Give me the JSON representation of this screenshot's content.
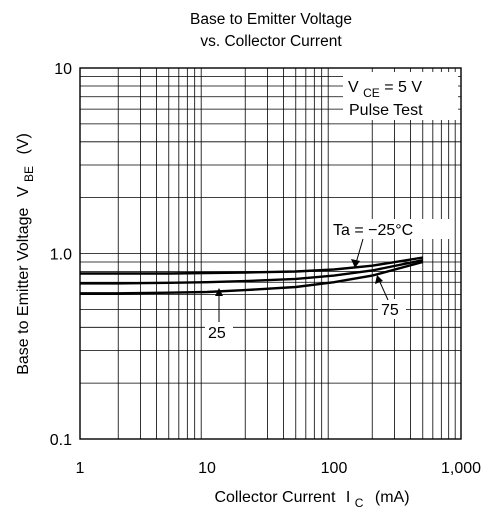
{
  "chart_data": {
    "type": "line",
    "title_line1": "Base to Emitter Voltage",
    "title_line2": "vs. Collector Current",
    "xlabel": "Collector Current",
    "xlabel_symbol": "I",
    "xlabel_sub": "C",
    "xlabel_unit": "(mA)",
    "ylabel": "Base to Emitter Voltage",
    "ylabel_symbol": "V",
    "ylabel_sub": "BE",
    "ylabel_unit": "(V)",
    "x_scale": "log",
    "y_scale": "log",
    "xlim": [
      1,
      1000
    ],
    "ylim": [
      0.1,
      10
    ],
    "x_ticks": [
      {
        "value": 1,
        "label": "1"
      },
      {
        "value": 10,
        "label": "10"
      },
      {
        "value": 100,
        "label": "100"
      },
      {
        "value": 1000,
        "label": "1,000"
      }
    ],
    "y_ticks": [
      {
        "value": 0.1,
        "label": "0.1"
      },
      {
        "value": 1,
        "label": "1.0"
      },
      {
        "value": 10,
        "label": "10"
      }
    ],
    "grid": true,
    "condition_symbol": "V",
    "condition_sub": "CE",
    "condition_value": " = 5 V",
    "condition_line2": "Pulse Test",
    "series": [
      {
        "name": "Ta = −25°C",
        "x": [
          1,
          2,
          5,
          10,
          20,
          50,
          100,
          200,
          500
        ],
        "y": [
          0.78,
          0.78,
          0.78,
          0.785,
          0.79,
          0.8,
          0.82,
          0.86,
          0.95
        ]
      },
      {
        "name": "25",
        "x": [
          1,
          2,
          5,
          10,
          20,
          50,
          100,
          200,
          500
        ],
        "y": [
          0.69,
          0.69,
          0.695,
          0.7,
          0.71,
          0.73,
          0.76,
          0.81,
          0.92
        ]
      },
      {
        "name": "75",
        "x": [
          1,
          2,
          5,
          10,
          20,
          50,
          100,
          200,
          500
        ],
        "y": [
          0.61,
          0.61,
          0.615,
          0.62,
          0.635,
          0.66,
          0.7,
          0.76,
          0.9
        ]
      }
    ]
  }
}
